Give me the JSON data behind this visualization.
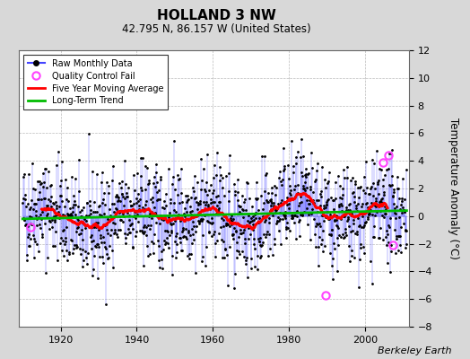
{
  "title": "HOLLAND 3 NW",
  "subtitle": "42.795 N, 86.157 W (United States)",
  "ylabel": "Temperature Anomaly (°C)",
  "credit": "Berkeley Earth",
  "ylim": [
    -8,
    12
  ],
  "yticks": [
    -8,
    -6,
    -4,
    -2,
    0,
    2,
    4,
    6,
    8,
    10,
    12
  ],
  "year_start": 1910,
  "year_end": 2011,
  "seed": 42,
  "line_color": "#4444ff",
  "dot_color": "#000000",
  "ma_color": "#ff0000",
  "trend_color": "#00bb00",
  "qc_color": "#ff44ff",
  "bg_color": "#d8d8d8",
  "plot_bg_color": "#ffffff",
  "qc_points": [
    {
      "year": 1912.0,
      "value": -0.8
    },
    {
      "year": 1989.5,
      "value": -5.7
    },
    {
      "year": 2004.8,
      "value": 3.9
    },
    {
      "year": 2006.0,
      "value": 4.4
    },
    {
      "year": 2007.3,
      "value": -2.1
    }
  ]
}
